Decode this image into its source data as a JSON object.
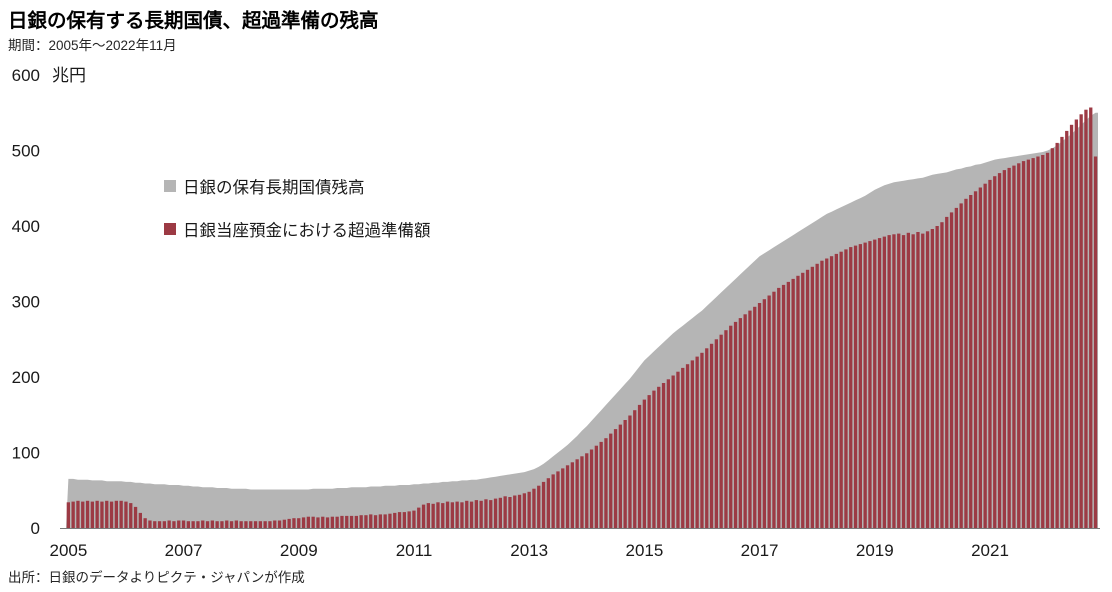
{
  "title": "日銀の保有する長期国債、超過準備の残高",
  "subtitle": "期間：2005年～2022年11月",
  "unit_label": "兆円",
  "source": "出所：日銀のデータよりピクテ・ジャパンが作成",
  "colors": {
    "area_gray": "#b5b5b5",
    "bar_red": "#9c3a44",
    "axis_line": "#7a7a7a",
    "text": "#1a1a1a"
  },
  "legend": [
    {
      "label": "日銀の保有長期国債残高",
      "color": "#b5b5b5"
    },
    {
      "label": "日銀当座預金における超過準備額",
      "color": "#9c3a44"
    }
  ],
  "chart_data": {
    "type": "area+bar",
    "title": "日銀の保有する長期国債、超過準備の残高",
    "period": "2005年～2022年11月",
    "x_unit": "month",
    "x_start": "2005-01",
    "x_end": "2022-11",
    "x_tick_labels": [
      "2005",
      "2007",
      "2009",
      "2011",
      "2013",
      "2015",
      "2017",
      "2019",
      "2021"
    ],
    "y_ticks": [
      0,
      100,
      200,
      300,
      400,
      500,
      600
    ],
    "ylim": [
      0,
      600
    ],
    "ylabel": "兆円",
    "grid": false,
    "legend_position": "upper-left-inside",
    "series": [
      {
        "name": "日銀の保有長期国債残高",
        "type": "area",
        "color": "#b5b5b5",
        "values": [
          65,
          65,
          64,
          64,
          64,
          63,
          63,
          63,
          62,
          62,
          62,
          62,
          61,
          61,
          60,
          60,
          59,
          59,
          58,
          58,
          58,
          57,
          57,
          57,
          56,
          56,
          55,
          55,
          54,
          54,
          54,
          53,
          53,
          53,
          52,
          52,
          52,
          52,
          51,
          51,
          51,
          51,
          51,
          51,
          51,
          51,
          51,
          51,
          51,
          51,
          51,
          52,
          52,
          52,
          52,
          52,
          53,
          53,
          53,
          54,
          54,
          54,
          54,
          55,
          55,
          55,
          56,
          56,
          56,
          57,
          57,
          57,
          58,
          58,
          59,
          59,
          60,
          60,
          61,
          61,
          62,
          62,
          63,
          63,
          64,
          64,
          65,
          66,
          67,
          68,
          69,
          70,
          71,
          72,
          73,
          74,
          76,
          78,
          81,
          85,
          90,
          95,
          100,
          105,
          110,
          116,
          122,
          129,
          135,
          142,
          149,
          156,
          163,
          170,
          177,
          184,
          191,
          198,
          206,
          214,
          222,
          228,
          234,
          240,
          246,
          252,
          258,
          263,
          268,
          273,
          278,
          283,
          288,
          294,
          300,
          306,
          312,
          318,
          324,
          330,
          336,
          342,
          348,
          354,
          360,
          364,
          368,
          372,
          376,
          380,
          384,
          388,
          392,
          396,
          400,
          404,
          408,
          412,
          416,
          419,
          422,
          425,
          428,
          431,
          434,
          437,
          440,
          444,
          448,
          451,
          454,
          456,
          458,
          459,
          460,
          461,
          462,
          463,
          464,
          466,
          468,
          469,
          470,
          471,
          473,
          475,
          476,
          478,
          479,
          481,
          482,
          484,
          486,
          488,
          489,
          490,
          491,
          492,
          493,
          494,
          495,
          496,
          497,
          498,
          500,
          503,
          507,
          512,
          517,
          522,
          528,
          534,
          540,
          546,
          550
        ]
      },
      {
        "name": "日銀当座預金における超過準備額",
        "type": "bar",
        "color": "#9c3a44",
        "values": [
          34,
          35,
          36,
          35,
          36,
          35,
          36,
          35,
          36,
          35,
          36,
          36,
          35,
          33,
          28,
          20,
          13,
          10,
          9,
          9,
          9,
          10,
          9,
          10,
          10,
          9,
          9,
          9,
          10,
          9,
          10,
          9,
          9,
          10,
          9,
          10,
          9,
          9,
          9,
          9,
          9,
          9,
          9,
          10,
          10,
          11,
          12,
          13,
          13,
          14,
          15,
          15,
          14,
          15,
          14,
          15,
          15,
          16,
          16,
          16,
          16,
          17,
          17,
          18,
          17,
          18,
          18,
          19,
          20,
          21,
          21,
          22,
          23,
          27,
          31,
          33,
          32,
          34,
          33,
          35,
          34,
          35,
          34,
          36,
          35,
          37,
          36,
          38,
          37,
          39,
          40,
          42,
          41,
          43,
          44,
          46,
          48,
          52,
          56,
          61,
          66,
          71,
          75,
          79,
          83,
          87,
          91,
          95,
          99,
          104,
          109,
          114,
          119,
          125,
          131,
          137,
          143,
          149,
          156,
          163,
          170,
          176,
          182,
          187,
          192,
          197,
          202,
          207,
          212,
          217,
          222,
          227,
          232,
          238,
          244,
          250,
          256,
          262,
          268,
          273,
          278,
          283,
          288,
          293,
          298,
          303,
          308,
          313,
          318,
          322,
          326,
          330,
          334,
          338,
          342,
          346,
          350,
          354,
          357,
          360,
          363,
          366,
          369,
          372,
          374,
          376,
          378,
          380,
          382,
          384,
          386,
          388,
          389,
          390,
          388,
          391,
          389,
          392,
          390,
          393,
          396,
          400,
          405,
          412,
          418,
          424,
          430,
          436,
          441,
          446,
          451,
          456,
          461,
          466,
          470,
          474,
          477,
          480,
          483,
          486,
          488,
          490,
          492,
          494,
          497,
          503,
          510,
          518,
          526,
          534,
          541,
          548,
          554,
          557,
          492
        ]
      }
    ]
  }
}
